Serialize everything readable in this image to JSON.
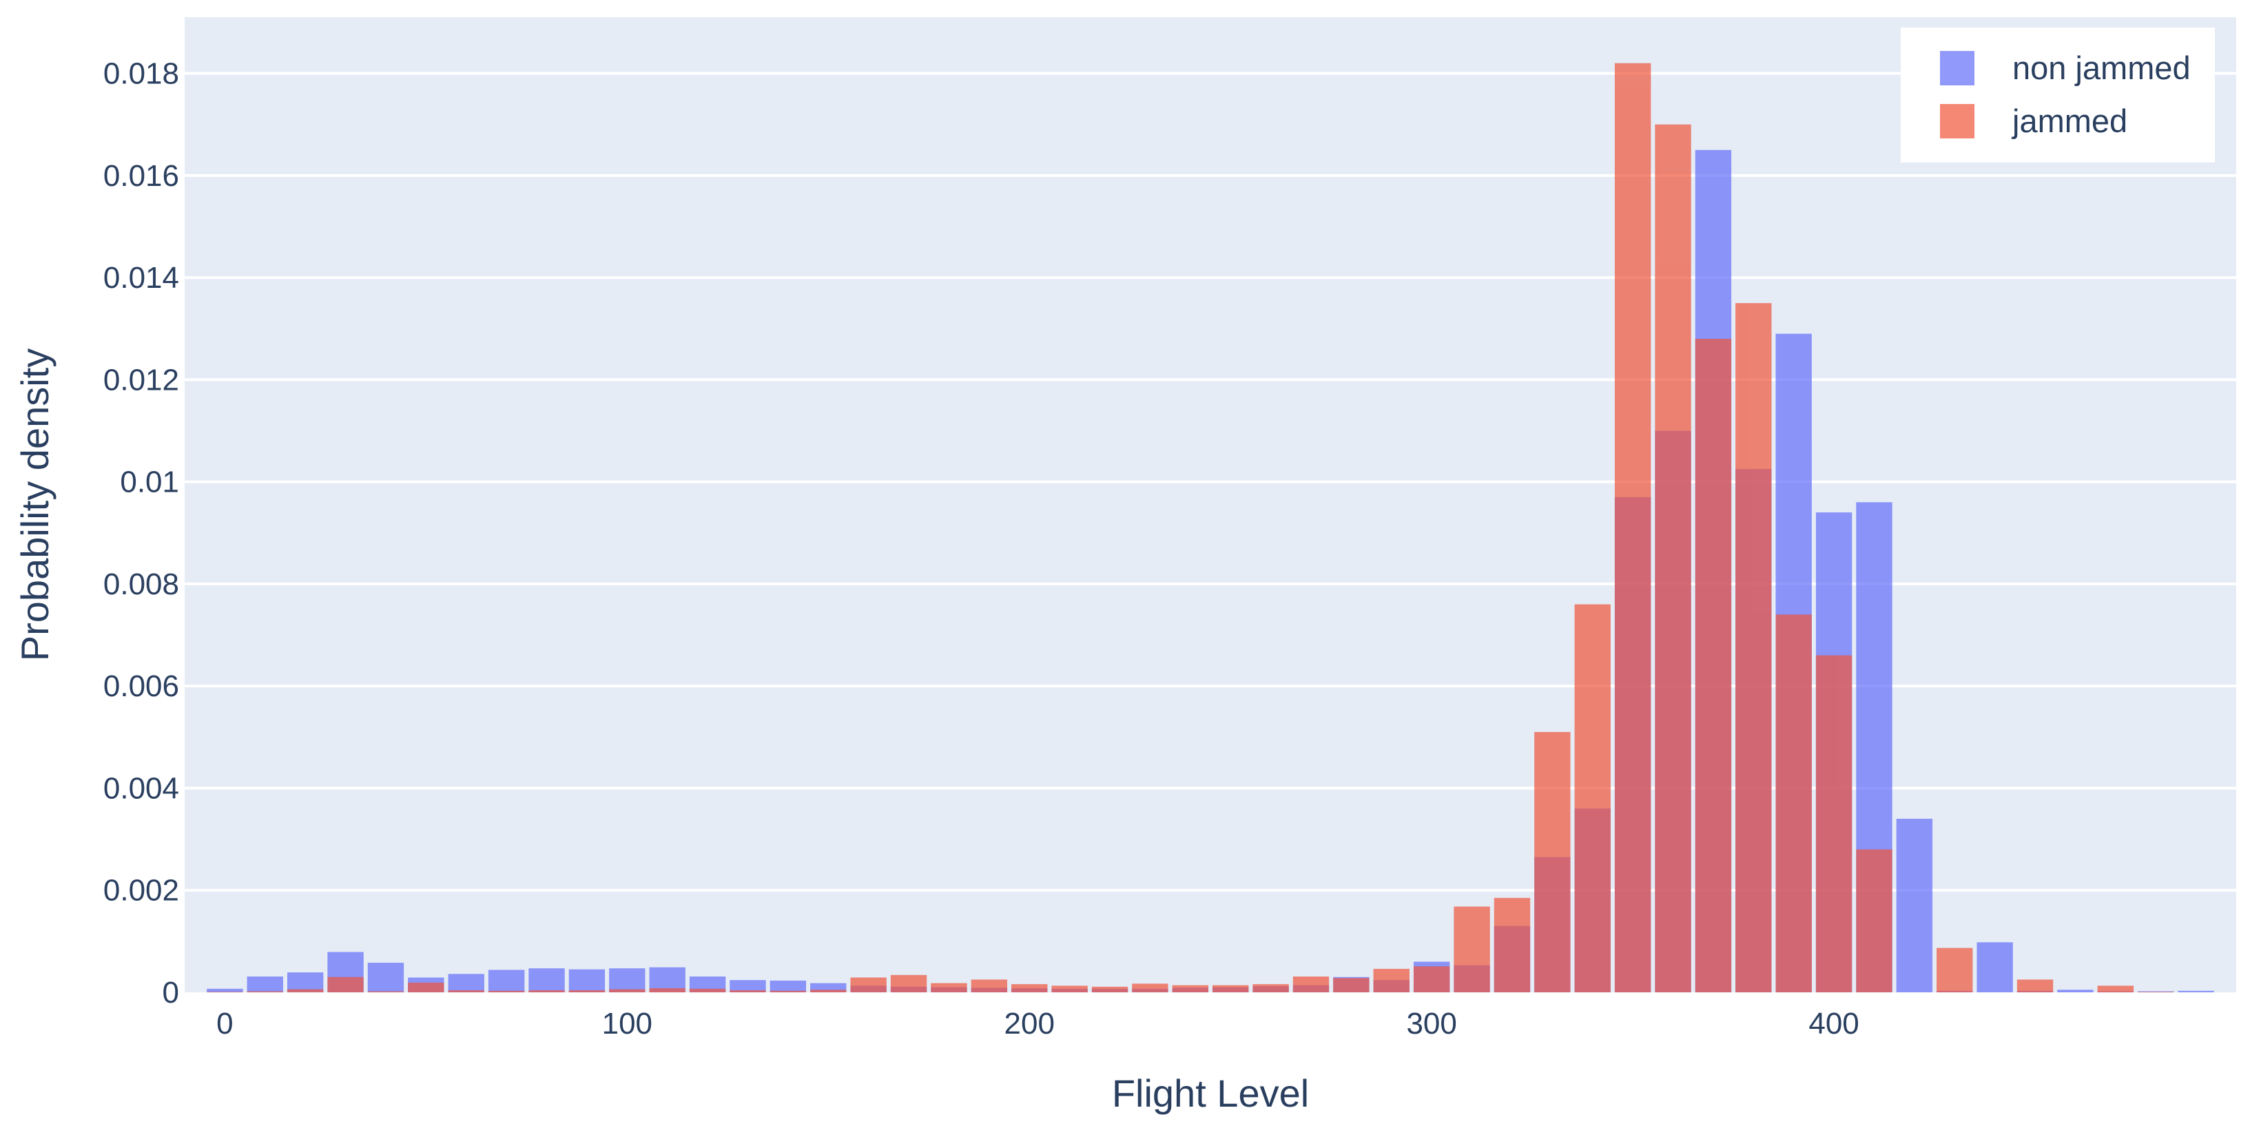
{
  "chart_data": {
    "type": "bar",
    "barmode": "overlay",
    "title": "",
    "xlabel": "Flight Level",
    "ylabel": "Probability density",
    "xlim": [
      -10,
      500
    ],
    "ylim": [
      0,
      0.0191
    ],
    "x_ticks": [
      0,
      100,
      200,
      300,
      400
    ],
    "x_tick_labels": [
      "0",
      "100",
      "200",
      "300",
      "400"
    ],
    "y_ticks": [
      0,
      0.002,
      0.004,
      0.006,
      0.008,
      0.01,
      0.012,
      0.014,
      0.016,
      0.018
    ],
    "y_tick_labels": [
      "0",
      "0.002",
      "0.004",
      "0.006",
      "0.008",
      "0.01",
      "0.012",
      "0.014",
      "0.016",
      "0.018"
    ],
    "bin_width": 10,
    "bin_starts": [
      -5,
      5,
      15,
      25,
      35,
      45,
      55,
      65,
      75,
      85,
      95,
      105,
      115,
      125,
      135,
      145,
      155,
      165,
      175,
      185,
      195,
      205,
      215,
      225,
      235,
      245,
      255,
      265,
      275,
      285,
      295,
      305,
      315,
      325,
      335,
      345,
      355,
      365,
      375,
      385,
      395,
      405,
      415,
      425,
      435,
      445,
      455,
      465,
      475,
      485
    ],
    "grid": true,
    "legend_position": "top-right",
    "plot_background": "#e5ecf6",
    "series": [
      {
        "name": "non jammed",
        "color": "#636efa",
        "opacity": 0.7,
        "values": [
          7e-05,
          0.00031,
          0.00039,
          0.00079,
          0.00058,
          0.00029,
          0.00036,
          0.00044,
          0.00047,
          0.00045,
          0.00047,
          0.00049,
          0.00031,
          0.00024,
          0.00023,
          0.00018,
          0.00013,
          0.00011,
          0.0001,
          9e-05,
          8e-05,
          7e-05,
          7e-05,
          7e-05,
          9e-05,
          0.0001,
          0.00012,
          0.00014,
          0.0003,
          0.00024,
          0.0006,
          0.00053,
          0.0013,
          0.00265,
          0.0036,
          0.0097,
          0.011,
          0.0165,
          0.01025,
          0.0129,
          0.0094,
          0.0096,
          0.0034,
          3e-05,
          0.00098,
          3e-05,
          5e-05,
          2e-05,
          2e-05,
          3e-05
        ]
      },
      {
        "name": "jammed",
        "color": "#ef553b",
        "opacity": 0.7,
        "values": [
          1e-05,
          2e-05,
          6e-05,
          0.0003,
          2e-05,
          0.00019,
          4e-05,
          3e-05,
          4e-05,
          4e-05,
          6e-05,
          8e-05,
          7e-05,
          4e-05,
          3e-05,
          5e-05,
          0.00029,
          0.00034,
          0.00018,
          0.00025,
          0.00016,
          0.00013,
          0.00011,
          0.00017,
          0.00014,
          0.00014,
          0.00016,
          0.00031,
          0.00028,
          0.00046,
          0.00051,
          0.00168,
          0.00185,
          0.0051,
          0.0076,
          0.0182,
          0.017,
          0.0128,
          0.0135,
          0.0074,
          0.0066,
          0.0028,
          0.0,
          0.00087,
          0.0,
          0.00025,
          0.0,
          0.00013,
          1e-05,
          0.0
        ]
      }
    ]
  }
}
